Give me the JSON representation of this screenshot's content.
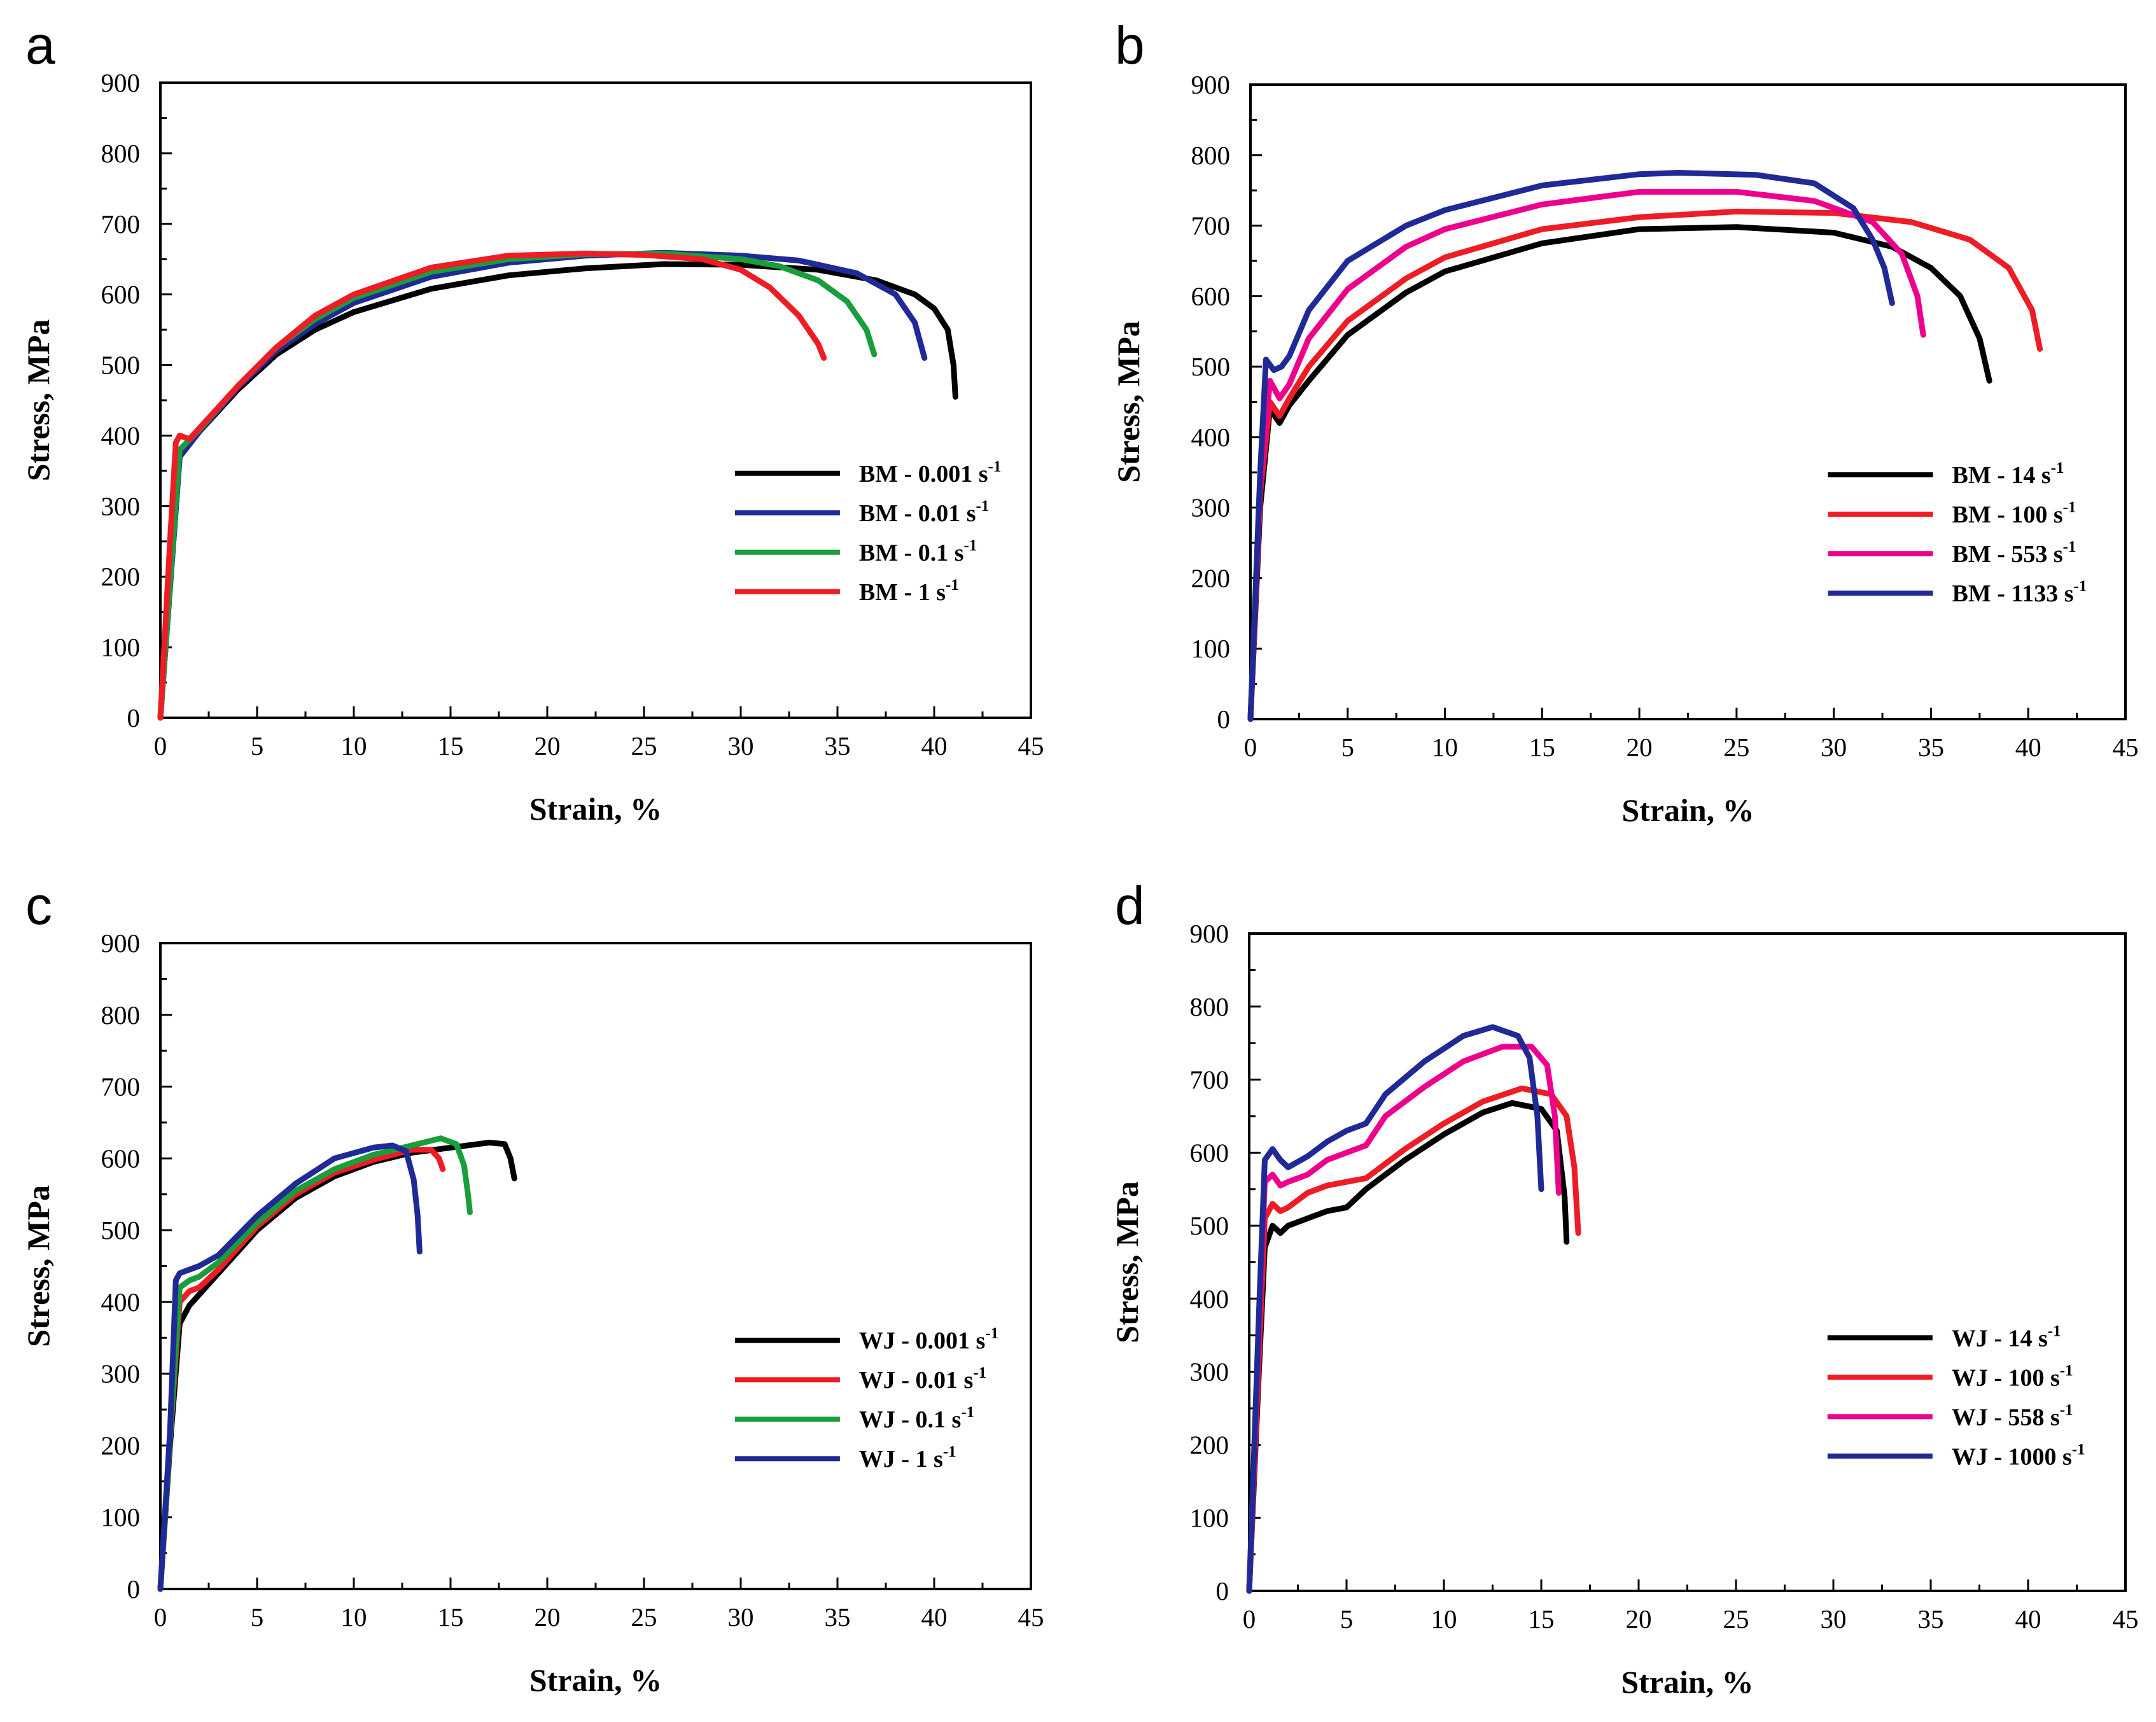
{
  "chart_data": [
    {
      "panel": "a",
      "type": "line",
      "xlabel": "Strain, %",
      "ylabel": "Stress, MPa",
      "xlim": [
        0,
        45
      ],
      "ylim": [
        0,
        900
      ],
      "xticks": [
        "0",
        "5",
        "10",
        "15",
        "20",
        "25",
        "30",
        "35",
        "40",
        "45"
      ],
      "yticks": [
        "0",
        "100",
        "200",
        "300",
        "400",
        "500",
        "600",
        "700",
        "800",
        "900"
      ],
      "legend": "center-right",
      "series": [
        {
          "name": "BM - 0.001 s",
          "sup": "-1",
          "color": "#000000",
          "x": [
            0,
            1,
            2,
            4,
            6,
            8,
            10,
            14,
            18,
            22,
            26,
            30,
            34,
            37,
            39,
            40,
            40.7,
            41.0,
            41.1
          ],
          "y": [
            0,
            370,
            405,
            465,
            515,
            550,
            575,
            608,
            627,
            637,
            643,
            642,
            635,
            620,
            600,
            580,
            550,
            500,
            455
          ]
        },
        {
          "name": "BM - 0.01 s",
          "sup": "-1",
          "color": "#1f2a96",
          "x": [
            0,
            1,
            2,
            4,
            6,
            8,
            10,
            14,
            18,
            22,
            26,
            30,
            33,
            36,
            38,
            39,
            39.5
          ],
          "y": [
            0,
            370,
            405,
            468,
            520,
            558,
            588,
            625,
            645,
            655,
            659,
            655,
            648,
            630,
            600,
            560,
            510
          ]
        },
        {
          "name": "BM - 0.1 s",
          "sup": "-1",
          "color": "#1a9e3c",
          "x": [
            0,
            1,
            2,
            4,
            6,
            8,
            10,
            14,
            18,
            22,
            26,
            30,
            32,
            34,
            35.5,
            36.5,
            36.9
          ],
          "y": [
            0,
            380,
            408,
            470,
            525,
            565,
            595,
            632,
            650,
            657,
            658,
            650,
            640,
            620,
            590,
            550,
            515
          ]
        },
        {
          "name": "BM - 1 s",
          "sup": "-1",
          "color": "#ee1c24",
          "x": [
            0,
            0.5,
            0.8,
            1.0,
            1.5,
            2,
            4,
            6,
            8,
            10,
            14,
            18,
            22,
            25,
            28,
            30,
            31.5,
            33,
            34,
            34.3
          ],
          "y": [
            0,
            250,
            390,
            400,
            395,
            410,
            470,
            525,
            570,
            600,
            638,
            655,
            658,
            656,
            650,
            635,
            610,
            570,
            530,
            510
          ]
        }
      ]
    },
    {
      "panel": "b",
      "type": "line",
      "xlabel": "Strain, %",
      "ylabel": "Stress, MPa",
      "xlim": [
        0,
        45
      ],
      "ylim": [
        0,
        900
      ],
      "xticks": [
        "0",
        "5",
        "10",
        "15",
        "20",
        "25",
        "30",
        "35",
        "40",
        "45"
      ],
      "yticks": [
        "0",
        "100",
        "200",
        "300",
        "400",
        "500",
        "600",
        "700",
        "800",
        "900"
      ],
      "legend": "center-right",
      "series": [
        {
          "name": "BM - 14 s",
          "sup": "-1",
          "color": "#000000",
          "x": [
            0,
            0.5,
            1.0,
            1.5,
            2,
            3,
            5,
            8,
            10,
            15,
            20,
            25,
            30,
            33,
            35,
            36.5,
            37.5,
            38.0
          ],
          "y": [
            0,
            300,
            440,
            420,
            445,
            480,
            545,
            605,
            635,
            675,
            695,
            698,
            690,
            670,
            640,
            600,
            540,
            480
          ]
        },
        {
          "name": "BM - 100 s",
          "sup": "-1",
          "color": "#ee1c24",
          "x": [
            0,
            0.5,
            1.0,
            1.5,
            2,
            3,
            5,
            8,
            10,
            15,
            20,
            25,
            30,
            34,
            37,
            39,
            40.2,
            40.6
          ],
          "y": [
            0,
            320,
            450,
            430,
            455,
            500,
            565,
            625,
            655,
            695,
            712,
            720,
            718,
            705,
            680,
            640,
            580,
            525
          ]
        },
        {
          "name": "BM - 553 s",
          "sup": "-1",
          "color": "#ec008c",
          "x": [
            0,
            0.5,
            1.0,
            1.5,
            2,
            3,
            5,
            8,
            10,
            15,
            20,
            25,
            29,
            32,
            33.5,
            34.3,
            34.6
          ],
          "y": [
            0,
            330,
            480,
            455,
            475,
            540,
            610,
            670,
            695,
            730,
            748,
            748,
            735,
            705,
            660,
            600,
            545
          ]
        },
        {
          "name": "BM - 1133 s",
          "sup": "-1",
          "color": "#1f2a96",
          "x": [
            0,
            0.5,
            0.8,
            1.2,
            1.6,
            2,
            3,
            5,
            8,
            10,
            15,
            20,
            22,
            26,
            29,
            31,
            32,
            32.6,
            33.0
          ],
          "y": [
            0,
            350,
            510,
            495,
            500,
            515,
            580,
            650,
            700,
            722,
            757,
            773,
            775,
            772,
            760,
            725,
            680,
            640,
            590
          ]
        }
      ]
    },
    {
      "panel": "c",
      "type": "line",
      "xlabel": "Strain, %",
      "ylabel": "Stress, MPa",
      "xlim": [
        0,
        45
      ],
      "ylim": [
        0,
        900
      ],
      "xticks": [
        "0",
        "5",
        "10",
        "15",
        "20",
        "25",
        "30",
        "35",
        "40",
        "45"
      ],
      "yticks": [
        "0",
        "100",
        "200",
        "300",
        "400",
        "500",
        "600",
        "700",
        "800",
        "900"
      ],
      "legend": "center-right",
      "series": [
        {
          "name": "WJ - 0.001 s",
          "sup": "-1",
          "color": "#000000",
          "x": [
            0,
            0.5,
            1.0,
            1.5,
            2,
            3,
            5,
            7,
            9,
            11,
            13,
            15,
            17,
            17.8,
            18.1,
            18.3
          ],
          "y": [
            0,
            200,
            370,
            395,
            410,
            440,
            500,
            545,
            575,
            595,
            608,
            615,
            622,
            620,
            600,
            572
          ]
        },
        {
          "name": "WJ - 0.01 s",
          "sup": "-1",
          "color": "#ee1c24",
          "x": [
            0,
            0.5,
            1.0,
            1.5,
            2,
            3,
            5,
            7,
            9,
            11,
            13,
            14,
            14.4,
            14.6
          ],
          "y": [
            0,
            210,
            400,
            415,
            420,
            445,
            505,
            550,
            580,
            598,
            612,
            612,
            600,
            585
          ]
        },
        {
          "name": "WJ - 0.1 s",
          "sup": "-1",
          "color": "#1a9e3c",
          "x": [
            0,
            0.5,
            1.0,
            1.5,
            2,
            3,
            5,
            7,
            9,
            11,
            13,
            14.5,
            15.3,
            15.7,
            15.9,
            16.0
          ],
          "y": [
            0,
            210,
            420,
            430,
            435,
            455,
            510,
            555,
            585,
            605,
            618,
            628,
            620,
            590,
            550,
            525
          ]
        },
        {
          "name": "WJ - 1 s",
          "sup": "-1",
          "color": "#1f2a96",
          "x": [
            0,
            0.5,
            0.8,
            1.0,
            1.5,
            2,
            3,
            5,
            7,
            9,
            11,
            12,
            12.7,
            13.1,
            13.3,
            13.4
          ],
          "y": [
            0,
            220,
            430,
            440,
            445,
            450,
            465,
            520,
            565,
            600,
            615,
            618,
            610,
            570,
            520,
            470
          ]
        }
      ]
    },
    {
      "panel": "d",
      "type": "line",
      "xlabel": "Strain, %",
      "ylabel": "Stress, MPa",
      "xlim": [
        0,
        45
      ],
      "ylim": [
        0,
        900
      ],
      "xticks": [
        "0",
        "5",
        "10",
        "15",
        "20",
        "25",
        "30",
        "35",
        "40",
        "45"
      ],
      "yticks": [
        "0",
        "100",
        "200",
        "300",
        "400",
        "500",
        "600",
        "700",
        "800",
        "900"
      ],
      "legend": "center-right",
      "series": [
        {
          "name": "WJ - 14 s",
          "sup": "-1",
          "color": "#000000",
          "x": [
            0,
            0.5,
            0.8,
            1.2,
            1.6,
            2,
            3,
            4,
            5,
            6,
            8,
            10,
            12,
            13.5,
            15,
            15.8,
            16.2,
            16.3
          ],
          "y": [
            0,
            300,
            470,
            500,
            490,
            500,
            510,
            520,
            525,
            550,
            590,
            625,
            655,
            668,
            660,
            630,
            540,
            478
          ]
        },
        {
          "name": "WJ - 100 s",
          "sup": "-1",
          "color": "#ee1c24",
          "x": [
            0,
            0.5,
            0.8,
            1.2,
            1.6,
            2,
            3,
            4,
            5,
            6,
            8,
            10,
            12,
            14,
            15.5,
            16.3,
            16.7,
            16.9
          ],
          "y": [
            0,
            320,
            510,
            530,
            520,
            525,
            545,
            555,
            560,
            565,
            605,
            640,
            670,
            688,
            680,
            650,
            580,
            490
          ]
        },
        {
          "name": "WJ - 558 s",
          "sup": "-1",
          "color": "#ec008c",
          "x": [
            0,
            0.5,
            0.8,
            1.2,
            1.6,
            2,
            3,
            4,
            5,
            6,
            7,
            9,
            11,
            13,
            14.5,
            15.3,
            15.7,
            15.9
          ],
          "y": [
            0,
            350,
            560,
            570,
            555,
            560,
            570,
            590,
            600,
            610,
            650,
            690,
            725,
            745,
            745,
            720,
            650,
            545
          ]
        },
        {
          "name": "WJ - 1000 s",
          "sup": "-1",
          "color": "#1f2a96",
          "x": [
            0,
            0.5,
            0.8,
            1.2,
            1.6,
            2,
            3,
            4,
            5,
            6,
            7,
            9,
            11,
            12.5,
            13.8,
            14.4,
            14.8,
            15.0
          ],
          "y": [
            0,
            380,
            590,
            605,
            590,
            580,
            595,
            615,
            630,
            640,
            680,
            725,
            760,
            772,
            760,
            730,
            650,
            550
          ]
        }
      ]
    }
  ]
}
